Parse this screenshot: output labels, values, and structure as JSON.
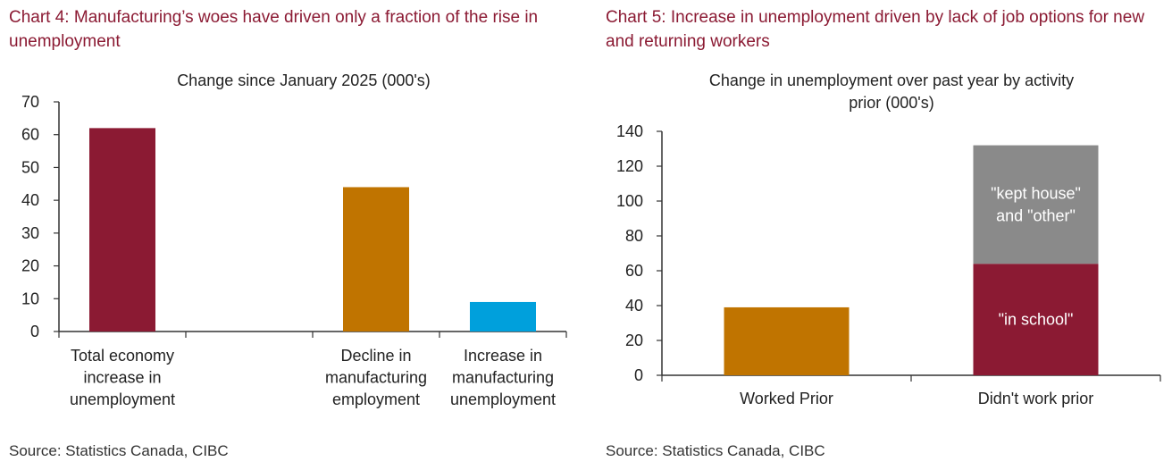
{
  "colors": {
    "heading": "#8b1a33",
    "maroon": "#8b1a33",
    "orange": "#c07400",
    "blue": "#00a0dc",
    "gray": "#8a8a8a"
  },
  "chart_data": [
    {
      "type": "bar",
      "heading": "Chart 4: Manufacturing’s woes have driven only a fraction of the rise in unemployment",
      "title": "Change since January 2025 (000's)",
      "categories": [
        [
          "Total economy",
          "increase in",
          "unemployment"
        ],
        [],
        [
          "Decline in",
          "manufacturing",
          "employment"
        ],
        [
          "Increase in",
          "manufacturing",
          "unemployment"
        ]
      ],
      "values": [
        62,
        null,
        44,
        9
      ],
      "colors": [
        "maroon",
        null,
        "orange",
        "blue"
      ],
      "ylim": [
        0,
        70
      ],
      "yticks": [
        0,
        10,
        20,
        30,
        40,
        50,
        60,
        70
      ],
      "grid": false,
      "source": "Source: Statistics Canada, CIBC"
    },
    {
      "type": "bar",
      "stacked": true,
      "heading": "Chart 5: Increase in unemployment driven by lack of job options for new and returning workers",
      "title": [
        "Change in unemployment over past year by activity",
        "prior (000's)"
      ],
      "categories": [
        "Worked Prior",
        "Didn't work prior"
      ],
      "series": [
        {
          "name": "Worked prior",
          "values": [
            39,
            null
          ],
          "color": "orange"
        },
        {
          "name": "\"in school\"",
          "values": [
            null,
            64
          ],
          "color": "maroon",
          "label": [
            "\"in school\""
          ]
        },
        {
          "name": "\"kept house\" and \"other\"",
          "values": [
            null,
            68
          ],
          "color": "gray",
          "label": [
            "\"kept house\"",
            "and \"other\""
          ]
        }
      ],
      "ylim": [
        0,
        140
      ],
      "yticks": [
        0,
        20,
        40,
        60,
        80,
        100,
        120,
        140
      ],
      "grid": false,
      "source": "Source: Statistics Canada, CIBC"
    }
  ]
}
